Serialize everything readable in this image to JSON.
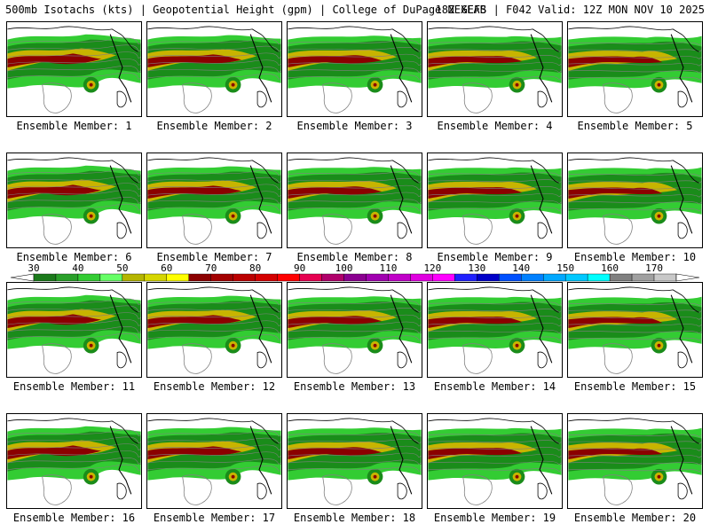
{
  "header": {
    "left": "500mb Isotachs (kts) | Geopotential Height (gpm) | College of DuPage NEXLAB",
    "right": "18Z GEFS | F042 Valid: 12Z MON NOV 10 2025"
  },
  "member_label_prefix": "Ensemble Member:",
  "members": [
    "1",
    "2",
    "3",
    "4",
    "5",
    "6",
    "7",
    "8",
    "9",
    "10",
    "11",
    "12",
    "13",
    "14",
    "15",
    "16",
    "17",
    "18",
    "19",
    "20"
  ],
  "colorbar": {
    "tick_labels": [
      "30",
      "40",
      "50",
      "60",
      "70",
      "80",
      "90",
      "100",
      "110",
      "120",
      "130",
      "140",
      "150",
      "160",
      "170"
    ],
    "colors": [
      "#1b7a1b",
      "#2aa02a",
      "#33cc33",
      "#66ff66",
      "#b5b500",
      "#d6d600",
      "#ffff00",
      "#8b0000",
      "#a30000",
      "#bb0000",
      "#d40000",
      "#ff0000",
      "#e60050",
      "#b0006a",
      "#8a0090",
      "#a000b0",
      "#c000c8",
      "#e000e0",
      "#ff00ff",
      "#2020ff",
      "#0000c8",
      "#0050ff",
      "#0080ff",
      "#00a8ff",
      "#00c8ff",
      "#00ffff",
      "#808080",
      "#a0a0a0",
      "#c8c8c8"
    ]
  },
  "map_colors": {
    "green_dark": "#1a8c1a",
    "green_light": "#33cc33",
    "yellow": "#c8b400",
    "dark_red": "#8b0000",
    "coast": "#000000",
    "contour": "#808080"
  }
}
